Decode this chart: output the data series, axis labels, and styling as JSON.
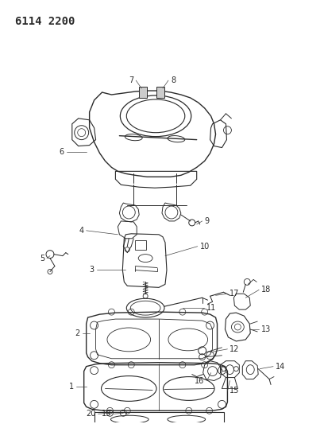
{
  "title": "6114 2200",
  "bg_color": "#ffffff",
  "line_color": "#2a2a2a",
  "title_fontsize": 10,
  "label_fontsize": 7,
  "fig_width": 4.08,
  "fig_height": 5.33,
  "dpi": 100
}
